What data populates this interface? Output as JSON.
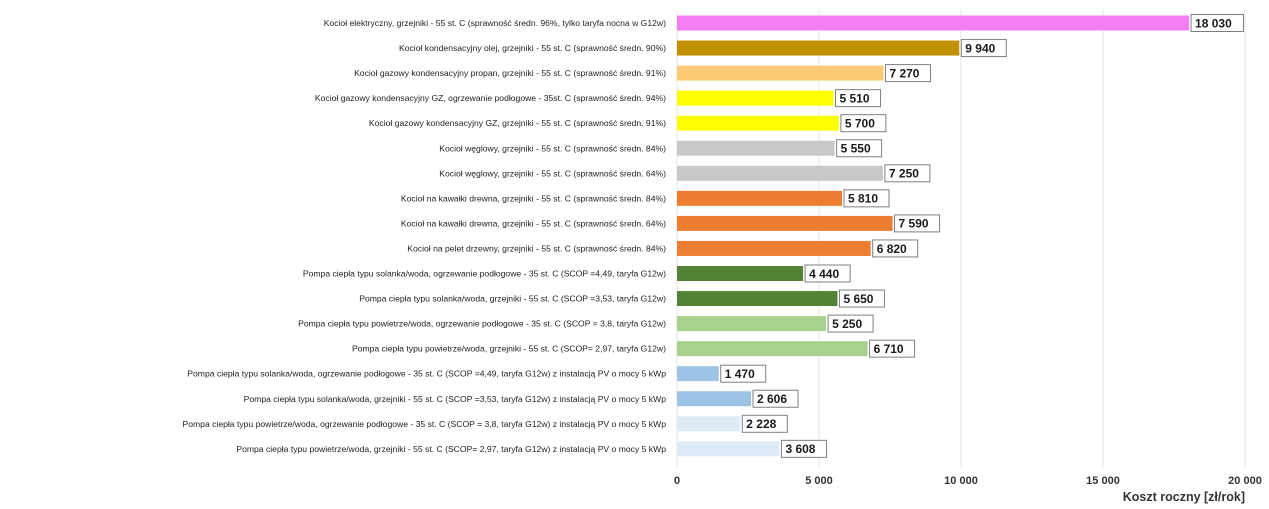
{
  "chart_data": {
    "type": "bar",
    "orientation": "horizontal",
    "title": "",
    "xlabel": "Koszt roczny [zł/rok]",
    "ylabel": "",
    "xlim": [
      0,
      20000
    ],
    "xticks": [
      0,
      5000,
      10000,
      15000,
      20000
    ],
    "xtick_labels": [
      "0",
      "5 000",
      "10 000",
      "15 000",
      "20 000"
    ],
    "grid": true,
    "legend": "none",
    "categories": [
      "Kocioł elektryczny, grzejniki - 55 st. C (sprawność średn. 96%, tylko taryfa nocna w G12w)",
      "Kocioł kondensacyjny olej, grzejniki - 55 st. C (sprawność średn. 90%)",
      "Kocioł gazowy kondensacyjny propan, grzejniki - 55 st. C (sprawność średn. 91%)",
      "Kocioł gazowy kondensacyjny GZ, ogrzewanie podłogowe - 35st. C (sprawność średn. 94%)",
      "Kocioł gazowy kondensacyjny GZ, grzejniki - 55 st. C (sprawność średn. 91%)",
      "Kocioł węglowy, grzejniki - 55 st. C (sprawność średn. 84%)",
      "Kocioł węglowy, grzejniki - 55 st. C (sprawność średn. 64%)",
      "Kocioł na kawałki drewna, grzejniki - 55 st. C (sprawność średn. 84%)",
      "Kocioł na kawałki drewna, grzejniki - 55 st. C (sprawność średn. 64%)",
      "Kocioł na pelet drzewny, grzejniki - 55 st. C (sprawność średn. 84%)",
      "Pompa ciepła typu solanka/woda, ogrzewanie podłogowe - 35 st. C (SCOP =4,49, taryfa G12w)",
      "Pompa ciepła typu solanka/woda, grzejniki - 55 st. C (SCOP =3,53, taryfa G12w)",
      "Pompa ciepła typu powietrze/woda, ogrzewanie podłogowe - 35 st. C (SCOP = 3,8, taryfa G12w)",
      "Pompa ciepła typu powietrze/woda, grzejniki - 55 st. C (SCOP= 2,97, taryfa G12w)",
      "Pompa ciepła typu solanka/woda, ogrzewanie podłogowe - 35 st. C (SCOP =4,49, taryfa G12w) z instalacją PV o mocy 5 kWp",
      "Pompa ciepła typu solanka/woda, grzejniki - 55 st. C (SCOP =3,53, taryfa G12w) z instalacją PV o mocy 5 kWp",
      "Pompa ciepła typu powietrze/woda, ogrzewanie podłogowe - 35 st. C (SCOP = 3,8, taryfa G12w) z instalacją PV o mocy 5 kWp",
      "Pompa ciepła typu powietrze/woda, grzejniki - 55 st. C (SCOP= 2,97, taryfa G12w) z instalacją PV o mocy 5 kWp"
    ],
    "values": [
      18030,
      9940,
      7270,
      5510,
      5700,
      5550,
      7250,
      5810,
      7590,
      6820,
      4440,
      5650,
      5250,
      6710,
      1470,
      2606,
      2228,
      3608
    ],
    "value_labels": [
      "18 030",
      "9 940",
      "7 270",
      "5 510",
      "5 700",
      "5 550",
      "7 250",
      "5 810",
      "7 590",
      "6 820",
      "4 440",
      "5 650",
      "5 250",
      "6 710",
      "1 470",
      "2 606",
      "2 228",
      "3 608"
    ],
    "colors": [
      "#f47ef1",
      "#c09000",
      "#fcc974",
      "#ffff00",
      "#ffff00",
      "#c8c8c8",
      "#c8c8c8",
      "#ed7d31",
      "#ed7d31",
      "#ed7d31",
      "#548235",
      "#548235",
      "#a9d18e",
      "#a9d18e",
      "#9dc3e6",
      "#9dc3e6",
      "#deebf7",
      "#deebf7"
    ]
  }
}
